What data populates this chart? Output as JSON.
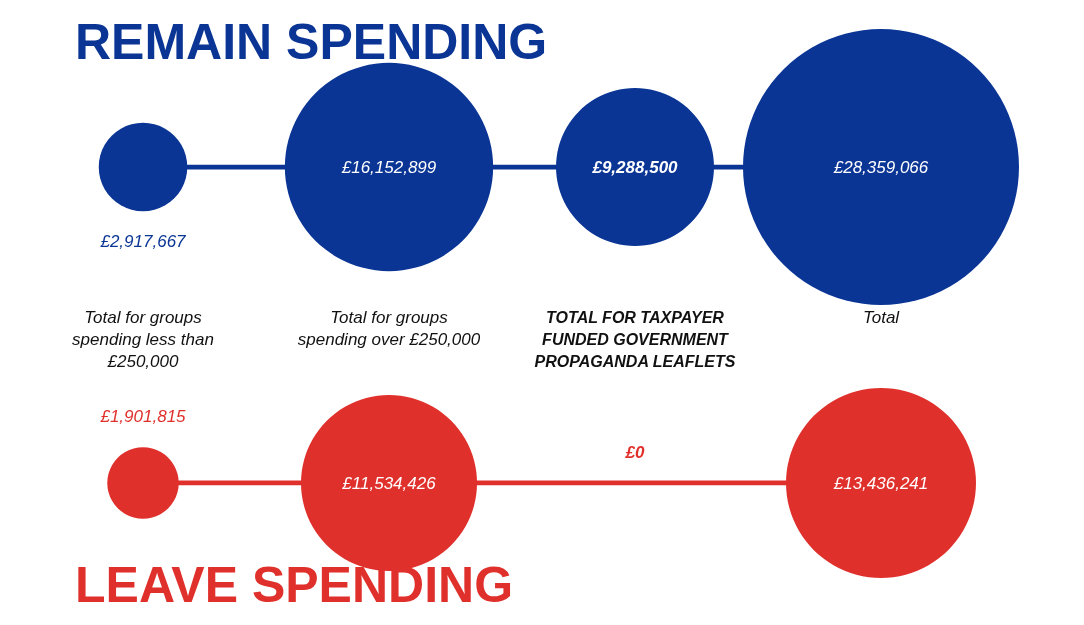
{
  "chart_data": {
    "type": "other",
    "categories": [
      "Total for groups spending less than £250,000",
      "Total for groups spending over £250,000",
      "TOTAL FOR TAXPAYER FUNDED GOVERNMENT PROPAGANDA LEAFLETS",
      "Total"
    ],
    "series": [
      {
        "name": "REMAIN SPENDING",
        "color": "#0a3595",
        "values": [
          2917667,
          16152899,
          9288500,
          28359066
        ],
        "value_labels": [
          "£2,917,667",
          "£16,152,899",
          "£9,288,500",
          "£28,359,066"
        ]
      },
      {
        "name": "LEAVE SPENDING",
        "color": "#e0302c",
        "values": [
          1901815,
          11534426,
          0,
          13436241
        ],
        "value_labels": [
          "£1,901,815",
          "£11,534,426",
          "£0",
          "£13,436,241"
        ]
      }
    ]
  }
}
